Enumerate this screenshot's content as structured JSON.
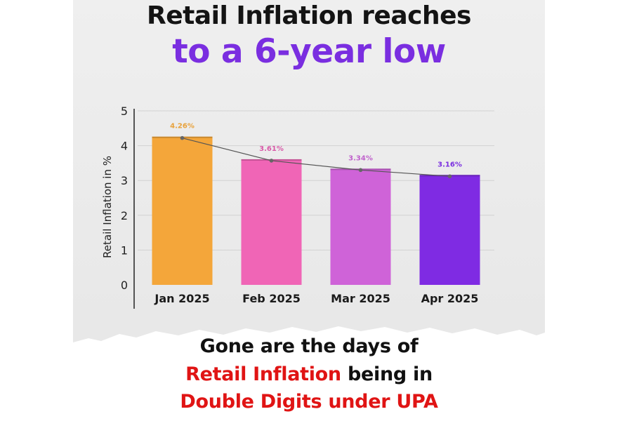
{
  "headline": {
    "line1": "Retail Inflation reaches",
    "line2": "to a 6-year low"
  },
  "caption": {
    "line1": "Gone are the days of",
    "line2_highlight": "Retail Inflation",
    "line2_rest": " being in",
    "line3": "Double Digits under UPA"
  },
  "colors": {
    "title_accent": "#7a2ee0",
    "caption_highlight": "#e01414"
  },
  "chart_data": {
    "type": "bar",
    "title": "",
    "xlabel": "",
    "ylabel": "Retail Inflation in %",
    "ylim": [
      0,
      5
    ],
    "yticks": [
      0,
      1,
      2,
      3,
      4,
      5
    ],
    "grid": true,
    "categories": [
      "Jan 2025",
      "Feb 2025",
      "Mar 2025",
      "Apr 2025"
    ],
    "values": [
      4.26,
      3.61,
      3.34,
      3.16
    ],
    "data_labels": [
      "4.26%",
      "3.61%",
      "3.34%",
      "3.16%"
    ],
    "bar_colors": [
      "#f4a63a",
      "#f065b6",
      "#cf63d8",
      "#7f2be3"
    ],
    "label_colors": [
      "#e8a13a",
      "#d85aa8",
      "#c062cc",
      "#7a2ee0"
    ],
    "trend_line": true
  }
}
